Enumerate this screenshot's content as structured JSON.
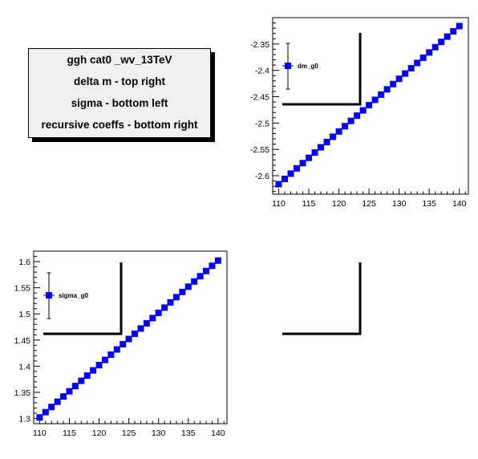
{
  "info_box": {
    "lines": [
      "ggh cat0 _wv_13TeV",
      "delta m -  top right",
      "sigma -  bottom left",
      "recursive coeffs -  bottom right"
    ]
  },
  "colors": {
    "marker": "#0000ff",
    "axis": "#000000"
  },
  "chart_data": [
    {
      "id": "dm",
      "type": "scatter",
      "panel": "top-right",
      "title": "",
      "xlabel": "",
      "ylabel": "",
      "legend": "dm_g0",
      "legend_placement": "top-left",
      "xlim": [
        109,
        141.5
      ],
      "ylim": [
        -2.635,
        -2.3
      ],
      "xticks": [
        110,
        115,
        120,
        125,
        130,
        135,
        140
      ],
      "xtick_labels": [
        "110",
        "115",
        "120",
        "125",
        "130",
        "135",
        "140"
      ],
      "yticks": [
        -2.6,
        -2.55,
        -2.5,
        -2.45,
        -2.4,
        -2.35
      ],
      "ytick_labels": [
        "-2.6",
        "-2.55",
        "-2.5",
        "-2.45",
        "-2.4",
        "-2.35"
      ],
      "x": [
        110,
        111,
        112,
        113,
        114,
        115,
        116,
        117,
        118,
        119,
        120,
        121,
        122,
        123,
        124,
        125,
        126,
        127,
        128,
        129,
        130,
        131,
        132,
        133,
        134,
        135,
        136,
        137,
        138,
        139,
        140
      ],
      "y": [
        -2.616,
        -2.606,
        -2.596,
        -2.586,
        -2.576,
        -2.566,
        -2.556,
        -2.546,
        -2.536,
        -2.526,
        -2.516,
        -2.506,
        -2.496,
        -2.486,
        -2.476,
        -2.466,
        -2.456,
        -2.446,
        -2.436,
        -2.426,
        -2.416,
        -2.406,
        -2.396,
        -2.386,
        -2.376,
        -2.366,
        -2.356,
        -2.346,
        -2.336,
        -2.326,
        -2.316
      ]
    },
    {
      "id": "sigma",
      "type": "scatter",
      "panel": "bottom-left",
      "title": "",
      "xlabel": "",
      "ylabel": "",
      "legend": "sigma_g0",
      "legend_placement": "top-left",
      "xlim": [
        109,
        141.5
      ],
      "ylim": [
        1.29,
        1.62
      ],
      "xticks": [
        110,
        115,
        120,
        125,
        130,
        135,
        140
      ],
      "xtick_labels": [
        "110",
        "115",
        "120",
        "125",
        "130",
        "135",
        "140"
      ],
      "yticks": [
        1.3,
        1.35,
        1.4,
        1.45,
        1.5,
        1.55,
        1.6
      ],
      "ytick_labels": [
        "1.3",
        "1.35",
        "1.4",
        "1.45",
        "1.5",
        "1.55",
        "1.6"
      ],
      "x": [
        110,
        111,
        112,
        113,
        114,
        115,
        116,
        117,
        118,
        119,
        120,
        121,
        122,
        123,
        124,
        125,
        126,
        127,
        128,
        129,
        130,
        131,
        132,
        133,
        134,
        135,
        136,
        137,
        138,
        139,
        140
      ],
      "y": [
        1.302,
        1.312,
        1.322,
        1.332,
        1.342,
        1.352,
        1.362,
        1.372,
        1.382,
        1.392,
        1.402,
        1.412,
        1.422,
        1.432,
        1.442,
        1.452,
        1.462,
        1.472,
        1.482,
        1.492,
        1.502,
        1.512,
        1.522,
        1.532,
        1.542,
        1.552,
        1.562,
        1.572,
        1.582,
        1.592,
        1.602
      ]
    }
  ]
}
